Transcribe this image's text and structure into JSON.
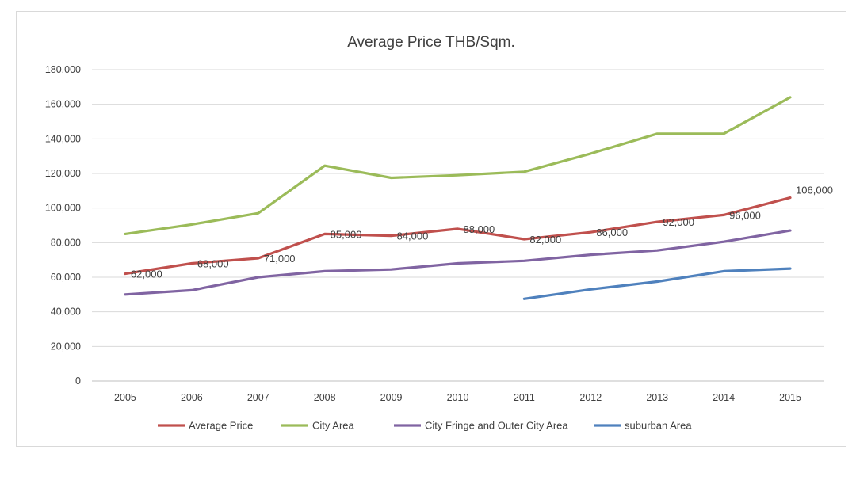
{
  "chart_data": {
    "type": "line",
    "title": "Average Price THB/Sqm.",
    "xlabel": "",
    "ylabel": "",
    "categories": [
      "2005",
      "2006",
      "2007",
      "2008",
      "2009",
      "2010",
      "2011",
      "2012",
      "2013",
      "2014",
      "2015"
    ],
    "ylim": [
      0,
      180000
    ],
    "yticks": [
      0,
      20000,
      40000,
      60000,
      80000,
      100000,
      120000,
      140000,
      160000,
      180000
    ],
    "ytick_labels": [
      "0",
      "20,000",
      "40,000",
      "60,000",
      "80,000",
      "100,000",
      "120,000",
      "140,000",
      "160,000",
      "180,000"
    ],
    "grid": true,
    "legend_position": "bottom",
    "series": [
      {
        "name": "Average Price",
        "color": "#c0504d",
        "values": [
          62000,
          68000,
          71000,
          85000,
          84000,
          88000,
          82000,
          86000,
          92000,
          96000,
          106000
        ],
        "data_labels": [
          "62,000",
          "68,000",
          "71,000",
          "85,000",
          "84,000",
          "88,000",
          "82,000",
          "86,000",
          "92,000",
          "96,000",
          "106,000"
        ]
      },
      {
        "name": "City Area",
        "color": "#9bbb59",
        "values": [
          85000,
          90500,
          97000,
          124500,
          117500,
          119000,
          121000,
          131500,
          143000,
          143000,
          164000
        ]
      },
      {
        "name": "City Fringe and Outer City Area",
        "color": "#8064a2",
        "values": [
          50000,
          52500,
          60000,
          63500,
          64500,
          68000,
          69500,
          73000,
          75500,
          80500,
          87000
        ]
      },
      {
        "name": "suburban Area",
        "color": "#4f81bd",
        "values": [
          null,
          null,
          null,
          null,
          null,
          null,
          47500,
          53000,
          57500,
          63500,
          65000
        ]
      }
    ]
  }
}
